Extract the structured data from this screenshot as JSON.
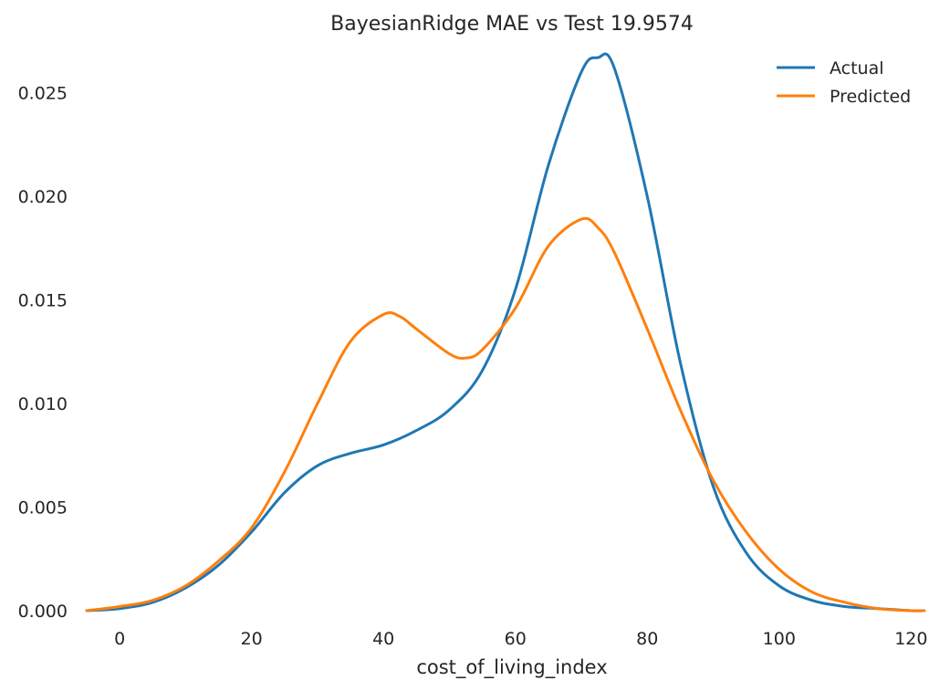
{
  "chart_data": {
    "type": "line",
    "title": "BayesianRidge MAE vs Test 19.9574",
    "xlabel": "cost_of_living_index",
    "ylabel": "",
    "xlim": [
      -5,
      123
    ],
    "ylim": [
      0,
      0.0275
    ],
    "xticks": [
      0,
      20,
      40,
      60,
      80,
      100,
      120
    ],
    "xtick_labels": [
      "0",
      "20",
      "40",
      "60",
      "80",
      "100",
      "120"
    ],
    "yticks": [
      0,
      0.005,
      0.01,
      0.015,
      0.02,
      0.025
    ],
    "ytick_labels": [
      "0.000",
      "0.005",
      "0.010",
      "0.015",
      "0.020",
      "0.025"
    ],
    "grid": false,
    "legend_position": "top-right",
    "series": [
      {
        "name": "Actual",
        "color": "#1f77b4",
        "x": [
          -5,
          0,
          5,
          10,
          15,
          20,
          25,
          30,
          35,
          40,
          45,
          50,
          55,
          60,
          65,
          70,
          72.5,
          75,
          80,
          85,
          90,
          95,
          100,
          105,
          110,
          115,
          120,
          122
        ],
        "y": [
          0.0,
          0.0001,
          0.0004,
          0.0011,
          0.0022,
          0.0038,
          0.0057,
          0.007,
          0.0076,
          0.008,
          0.0087,
          0.0097,
          0.0116,
          0.0155,
          0.0215,
          0.026,
          0.0267,
          0.0262,
          0.02,
          0.012,
          0.006,
          0.0028,
          0.0012,
          0.0005,
          0.0002,
          0.0001,
          0.0,
          0.0
        ]
      },
      {
        "name": "Predicted",
        "color": "#ff7f0e",
        "x": [
          -5,
          0,
          5,
          10,
          15,
          20,
          25,
          30,
          35,
          40,
          42.5,
          45,
          50,
          52.5,
          55,
          60,
          65,
          70,
          72.5,
          75,
          80,
          85,
          90,
          95,
          100,
          105,
          110,
          115,
          120,
          122
        ],
        "y": [
          0.0,
          0.0002,
          0.0005,
          0.0012,
          0.0024,
          0.004,
          0.0067,
          0.01,
          0.013,
          0.0143,
          0.0142,
          0.0136,
          0.0124,
          0.0122,
          0.0126,
          0.0146,
          0.0176,
          0.0189,
          0.0185,
          0.0173,
          0.0136,
          0.0097,
          0.0063,
          0.0038,
          0.002,
          0.0009,
          0.0004,
          0.0001,
          0.0,
          0.0
        ]
      }
    ]
  }
}
